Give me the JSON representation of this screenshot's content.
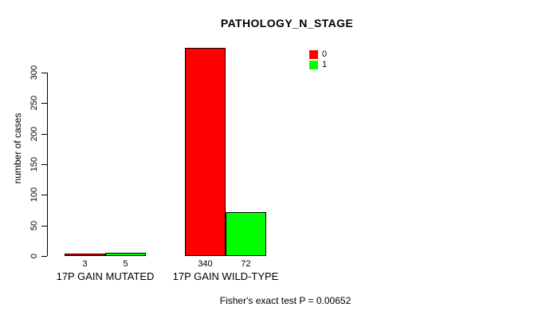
{
  "chart_data": {
    "type": "bar",
    "title": "PATHOLOGY_N_STAGE",
    "ylabel": "number of cases",
    "xlabel": "",
    "categories": [
      "17P GAIN MUTATED",
      "17P GAIN WILD-TYPE"
    ],
    "series": [
      {
        "name": "0",
        "color": "#FF0000",
        "values": [
          3,
          340
        ]
      },
      {
        "name": "1",
        "color": "#00FF00",
        "values": [
          5,
          72
        ]
      }
    ],
    "value_labels": [
      [
        "3",
        "340"
      ],
      [
        "5",
        "72"
      ]
    ],
    "yticks": [
      0,
      50,
      100,
      150,
      200,
      250,
      300
    ],
    "ylim": [
      0,
      340
    ],
    "grid": false,
    "legend_position": "top-right",
    "annotation": "Fisher's exact test P = 0.00652"
  },
  "colors": {
    "bar_border": "#000000",
    "axis": "#000000",
    "background": "#ffffff",
    "series_0": "#FF0000",
    "series_1": "#00FF00"
  }
}
